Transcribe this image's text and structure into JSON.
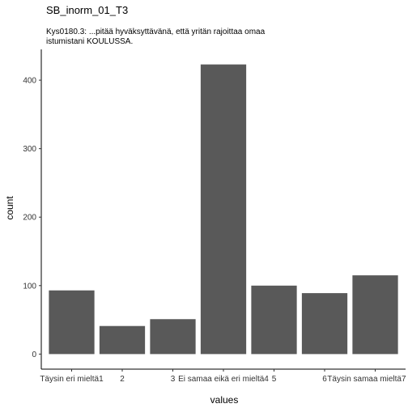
{
  "chart_data": {
    "type": "bar",
    "title": "SB_inorm_01_T3",
    "subtitle_lines": [
      "Kys0180.3: ...pitää hyväksyttävänä, että yritän rajoittaa omaa",
      "istumistani KOULUSSA."
    ],
    "xlabel": "values",
    "ylabel": "count",
    "categories": [
      "Täysin eri mieltä1",
      "2",
      "3",
      "Ei samaa eikä eri mieltä4",
      "5",
      "6",
      "Täysin samaa mieltä7"
    ],
    "values": [
      93,
      41,
      51,
      423,
      100,
      89,
      115
    ],
    "ylim": [
      -22,
      445
    ],
    "yticks": [
      0,
      100,
      200,
      300,
      400
    ],
    "grid": false,
    "legend": "none",
    "bar_color": "#595959"
  }
}
